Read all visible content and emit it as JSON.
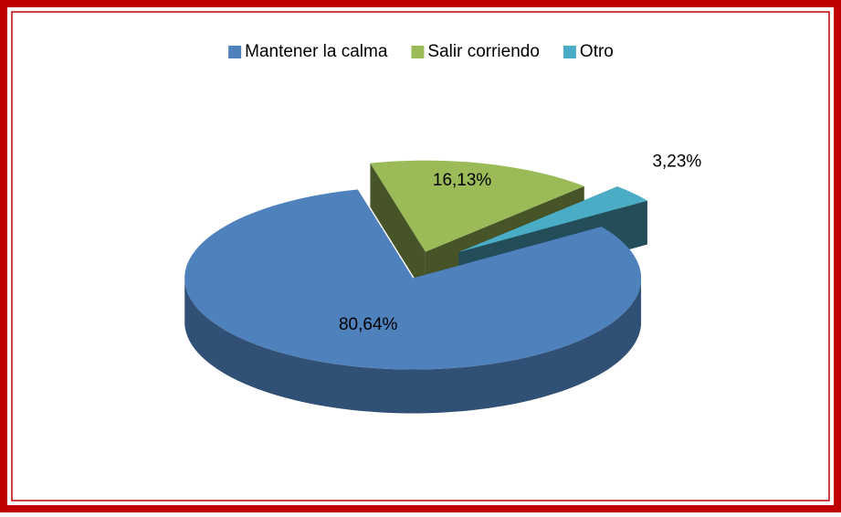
{
  "chart_data": {
    "type": "pie",
    "categories": [
      "Mantener la calma",
      "Salir corriendo",
      "Otro"
    ],
    "values": [
      80.64,
      16.13,
      3.23
    ],
    "value_labels": [
      "80,64%",
      "16,13%",
      "3,23%"
    ],
    "colors": [
      "#4f81bd",
      "#9bbb59",
      "#4bacc6"
    ],
    "legend": "top"
  }
}
